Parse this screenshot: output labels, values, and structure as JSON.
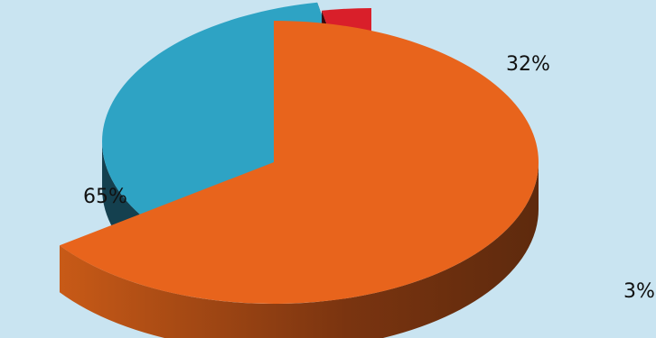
{
  "chart_data": {
    "type": "pie",
    "title": "",
    "style": "3d-exploded",
    "background": "#c9e4f1",
    "slices": [
      {
        "label": "65%",
        "value": 65,
        "color": "#e8641c",
        "side_color": "#8f3c10"
      },
      {
        "label": "32%",
        "value": 32,
        "color": "#2ea3c4",
        "side_color": "#14404f"
      },
      {
        "label": "3%",
        "value": 3,
        "color": "#d91f2a",
        "side_color": "#5a0a10"
      }
    ]
  }
}
